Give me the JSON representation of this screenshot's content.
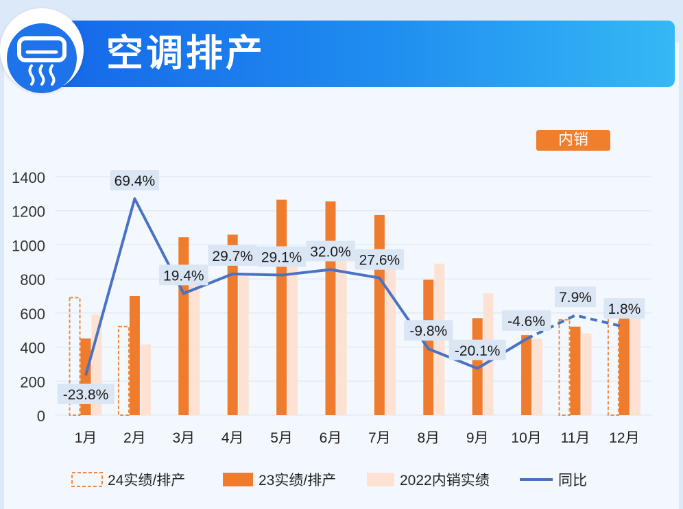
{
  "header": {
    "title": "空调排产",
    "icon": "air-conditioner-icon"
  },
  "tag": {
    "label": "内销"
  },
  "colors": {
    "bar24": "#f08a3e",
    "bar23": "#ef7b2c",
    "bar22": "#fde2d3",
    "line": "#4a72c4",
    "label_bg": "#dbe6f4"
  },
  "chart_data": {
    "type": "bar",
    "categories": [
      "1月",
      "2月",
      "3月",
      "4月",
      "5月",
      "6月",
      "7月",
      "8月",
      "9月",
      "10月",
      "11月",
      "12月"
    ],
    "ylim": [
      0,
      1400
    ],
    "yticks": [
      0,
      200,
      400,
      600,
      800,
      1000,
      1200,
      1400
    ],
    "grid": true,
    "series": [
      {
        "name": "24实绩/排产",
        "style": "dashed-outline",
        "values": [
          690,
          520,
          null,
          null,
          null,
          null,
          null,
          null,
          null,
          null,
          560,
          590
        ]
      },
      {
        "name": "23实绩/排产",
        "style": "solid",
        "values": [
          450,
          700,
          1045,
          1060,
          1265,
          1255,
          1175,
          795,
          570,
          470,
          520,
          585
        ]
      },
      {
        "name": "2022内销实绩",
        "style": "light",
        "values": [
          590,
          415,
          885,
          830,
          990,
          960,
          935,
          890,
          715,
          450,
          480,
          570
        ]
      }
    ],
    "line": {
      "name": "同比",
      "values": [
        -23.8,
        69.4,
        19.4,
        29.7,
        29.1,
        32.0,
        27.6,
        -9.8,
        -20.1,
        -4.6,
        7.9,
        1.8
      ],
      "labels": [
        "-23.8%",
        "69.4%",
        "19.4%",
        "29.7%",
        "29.1%",
        "32.0%",
        "27.6%",
        "-9.8%",
        "-20.1%",
        "-4.6%",
        "7.9%",
        "1.8%"
      ],
      "dashed_from_index": 9
    },
    "legend": [
      "24实绩/排产",
      "23实绩/排产",
      "2022内销实绩",
      "同比"
    ],
    "legend_position": "bottom"
  }
}
